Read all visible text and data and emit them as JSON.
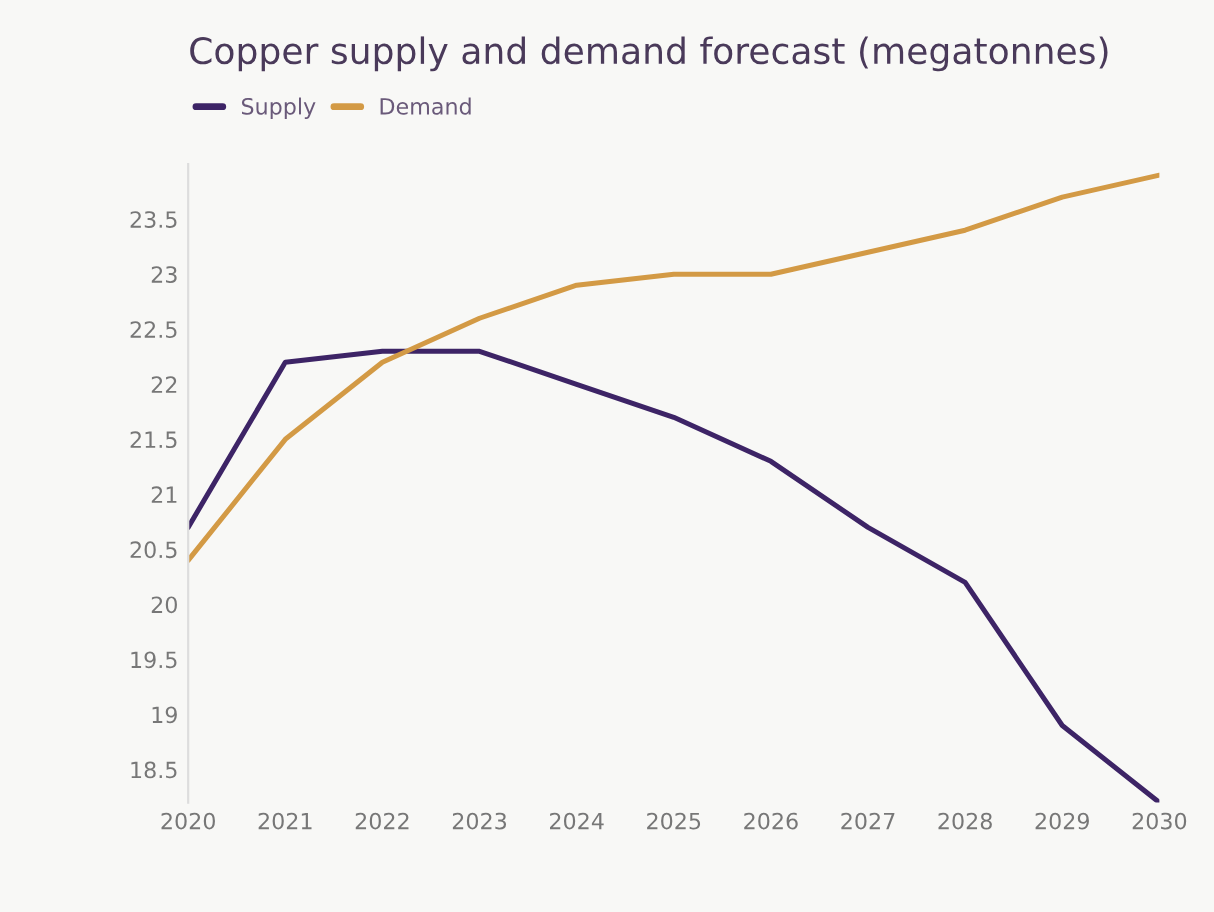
{
  "chart_data": {
    "type": "line",
    "title": "Copper supply and demand forecast (megatonnes)",
    "x": [
      2020,
      2021,
      2022,
      2023,
      2024,
      2025,
      2026,
      2027,
      2028,
      2029,
      2030
    ],
    "series": [
      {
        "name": "Supply",
        "color": "#3d2466",
        "values": [
          20.7,
          22.2,
          22.3,
          22.3,
          22.0,
          21.7,
          21.3,
          20.7,
          20.2,
          18.9,
          18.2
        ]
      },
      {
        "name": "Demand",
        "color": "#d39a45",
        "values": [
          20.4,
          21.5,
          22.2,
          22.6,
          22.9,
          23.0,
          23.0,
          23.2,
          23.4,
          23.7,
          23.9
        ]
      }
    ],
    "xlim": [
      2020,
      2030
    ],
    "xticks": [
      2020,
      2021,
      2022,
      2023,
      2024,
      2025,
      2026,
      2027,
      2028,
      2029,
      2030
    ],
    "ylim": [
      18.2,
      24.0
    ],
    "yticks": [
      18.5,
      19,
      19.5,
      20,
      20.5,
      21,
      21.5,
      22,
      22.5,
      23,
      23.5
    ],
    "grid": false,
    "legend": "top left",
    "marker": "none",
    "line_style": "solid"
  }
}
